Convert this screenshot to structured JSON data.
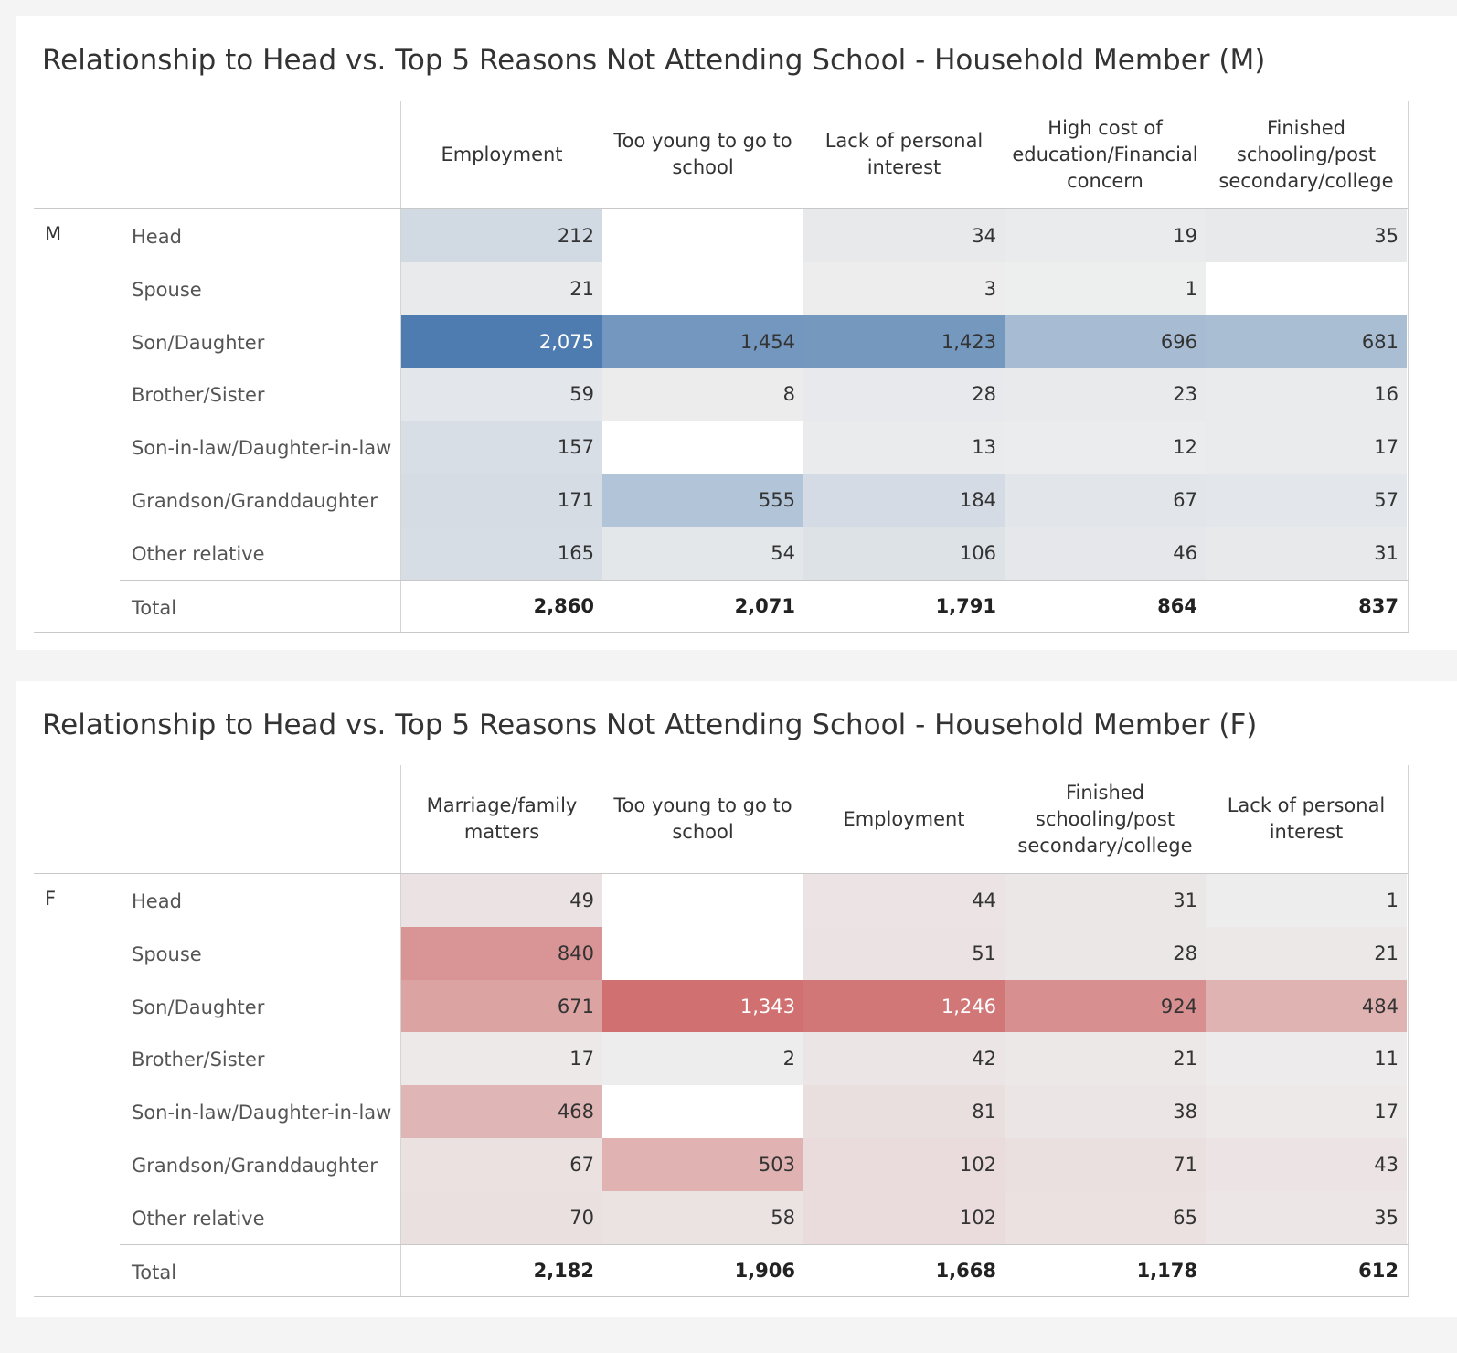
{
  "chart_data": [
    {
      "type": "table",
      "title": "Relationship to Head vs. Top 5 Reasons Not Attending School - Household Member (M)",
      "group": "M",
      "columns": [
        "Employment",
        "Too young to go to school",
        "Lack of personal interest",
        "High cost of education/Financial concern",
        "Finished schooling/post secondary/college"
      ],
      "rows": [
        {
          "label": "Head",
          "values": [
            212,
            null,
            34,
            19,
            35
          ],
          "display": [
            "212",
            "",
            "34",
            "19",
            "35"
          ]
        },
        {
          "label": "Spouse",
          "values": [
            21,
            null,
            3,
            1,
            null
          ],
          "display": [
            "21",
            "",
            "3",
            "1",
            ""
          ]
        },
        {
          "label": "Son/Daughter",
          "values": [
            2075,
            1454,
            1423,
            696,
            681
          ],
          "display": [
            "2,075",
            "1,454",
            "1,423",
            "696",
            "681"
          ]
        },
        {
          "label": "Brother/Sister",
          "values": [
            59,
            8,
            28,
            23,
            16
          ],
          "display": [
            "59",
            "8",
            "28",
            "23",
            "16"
          ]
        },
        {
          "label": "Son-in-law/Daughter-in-law",
          "values": [
            157,
            null,
            13,
            12,
            17
          ],
          "display": [
            "157",
            "",
            "13",
            "12",
            "17"
          ]
        },
        {
          "label": "Grandson/Granddaughter",
          "values": [
            171,
            555,
            184,
            67,
            57
          ],
          "display": [
            "171",
            "555",
            "184",
            "67",
            "57"
          ]
        },
        {
          "label": "Other relative",
          "values": [
            165,
            54,
            106,
            46,
            31
          ],
          "display": [
            "165",
            "54",
            "106",
            "46",
            "31"
          ]
        }
      ],
      "total_label": "Total",
      "totals": [
        2860,
        2071,
        1791,
        864,
        837
      ],
      "totals_display": [
        "2,860",
        "2,071",
        "1,791",
        "864",
        "837"
      ],
      "max_value": 2075,
      "color_scale": {
        "low": "#eeeeee",
        "high": "#4e7cb0"
      }
    },
    {
      "type": "table",
      "title": "Relationship to Head vs. Top 5 Reasons Not Attending School - Household Member (F)",
      "group": "F",
      "columns": [
        "Marriage/family matters",
        "Too young to go to school",
        "Employment",
        "Finished schooling/post secondary/college",
        "Lack of personal interest"
      ],
      "rows": [
        {
          "label": "Head",
          "values": [
            49,
            null,
            44,
            31,
            1
          ],
          "display": [
            "49",
            "",
            "44",
            "31",
            "1"
          ]
        },
        {
          "label": "Spouse",
          "values": [
            840,
            null,
            51,
            28,
            21
          ],
          "display": [
            "840",
            "",
            "51",
            "28",
            "21"
          ]
        },
        {
          "label": "Son/Daughter",
          "values": [
            671,
            1343,
            1246,
            924,
            484
          ],
          "display": [
            "671",
            "1,343",
            "1,246",
            "924",
            "484"
          ]
        },
        {
          "label": "Brother/Sister",
          "values": [
            17,
            2,
            42,
            21,
            11
          ],
          "display": [
            "17",
            "2",
            "42",
            "21",
            "11"
          ]
        },
        {
          "label": "Son-in-law/Daughter-in-law",
          "values": [
            468,
            null,
            81,
            38,
            17
          ],
          "display": [
            "468",
            "",
            "81",
            "38",
            "17"
          ]
        },
        {
          "label": "Grandson/Granddaughter",
          "values": [
            67,
            503,
            102,
            71,
            43
          ],
          "display": [
            "67",
            "503",
            "102",
            "71",
            "43"
          ]
        },
        {
          "label": "Other relative",
          "values": [
            70,
            58,
            102,
            65,
            35
          ],
          "display": [
            "70",
            "58",
            "102",
            "65",
            "35"
          ]
        }
      ],
      "total_label": "Total",
      "totals": [
        2182,
        1906,
        1668,
        1178,
        612
      ],
      "totals_display": [
        "2,182",
        "1,906",
        "1,668",
        "1,178",
        "612"
      ],
      "max_value": 1343,
      "color_scale": {
        "low": "#eeeeee",
        "high": "#d07070"
      }
    }
  ]
}
